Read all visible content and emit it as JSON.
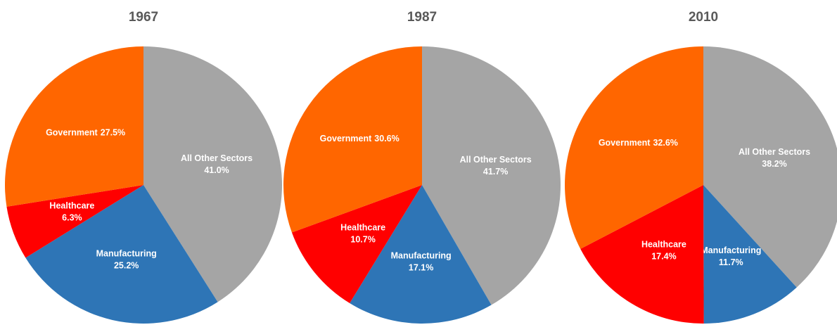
{
  "chart_data": [
    {
      "type": "pie",
      "title": "1967",
      "categories": [
        "All Other Sectors",
        "Manufacturing",
        "Healthcare",
        "Government"
      ],
      "values": [
        41.0,
        25.2,
        6.3,
        27.5
      ],
      "value_labels": [
        "41.0%",
        "25.2%",
        "6.3%",
        "27.5%"
      ],
      "colors": [
        "#a5a5a5",
        "#2e75b6",
        "#ff0000",
        "#ff6600"
      ]
    },
    {
      "type": "pie",
      "title": "1987",
      "categories": [
        "All Other Sectors",
        "Manufacturing",
        "Healthcare",
        "Government"
      ],
      "values": [
        41.7,
        17.1,
        10.7,
        30.6
      ],
      "value_labels": [
        "41.7%",
        "17.1%",
        "10.7%",
        "30.6%"
      ],
      "colors": [
        "#a5a5a5",
        "#2e75b6",
        "#ff0000",
        "#ff6600"
      ]
    },
    {
      "type": "pie",
      "title": "2010",
      "categories": [
        "All Other Sectors",
        "Manufacturing",
        "Healthcare",
        "Government"
      ],
      "values": [
        38.2,
        11.7,
        17.4,
        32.6
      ],
      "value_labels": [
        "38.2%",
        "11.7%",
        "17.4%",
        "32.6%"
      ],
      "colors": [
        "#a5a5a5",
        "#2e75b6",
        "#ff0000",
        "#ff6600"
      ]
    }
  ]
}
